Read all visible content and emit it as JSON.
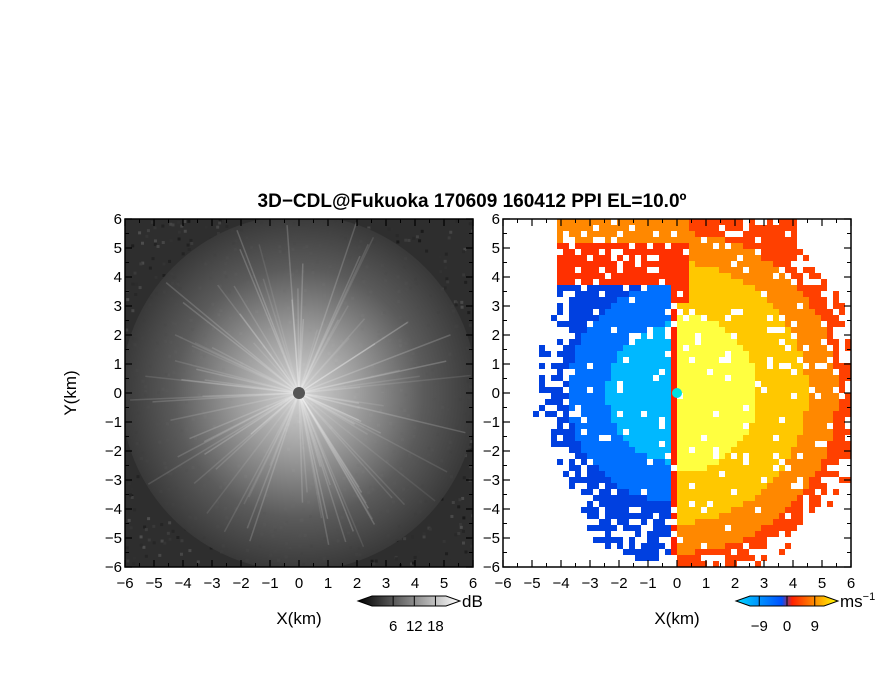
{
  "title": "3D−CDL@Fukuoka 170609 160412 PPI EL=10.0º",
  "chart_data": [
    {
      "type": "heatmap",
      "panel": "reflectivity",
      "xlabel": "X(km)",
      "ylabel": "Y(km)",
      "xlim": [
        -6,
        6
      ],
      "ylim": [
        -6,
        6
      ],
      "xticks": [
        "−6",
        "−5",
        "−4",
        "−3",
        "−2",
        "−1",
        "0",
        "1",
        "2",
        "3",
        "4",
        "5",
        "6"
      ],
      "yticks": [
        "−6",
        "−5",
        "−4",
        "−3",
        "−2",
        "−1",
        "0",
        "1",
        "2",
        "3",
        "4",
        "5",
        "6"
      ],
      "colorbar": {
        "unit": "dB",
        "ticks": [
          "6",
          "12",
          "18"
        ],
        "range": [
          0,
          21
        ],
        "colors": [
          "#000000",
          "#ffffff"
        ]
      },
      "grid": false
    },
    {
      "type": "heatmap",
      "panel": "doppler-velocity",
      "xlabel": "X(km)",
      "ylabel": "",
      "xlim": [
        -6,
        6
      ],
      "ylim": [
        -6,
        6
      ],
      "xticks": [
        "−6",
        "−5",
        "−4",
        "−3",
        "−2",
        "−1",
        "0",
        "1",
        "2",
        "3",
        "4",
        "5",
        "6"
      ],
      "yticks": [
        "−6",
        "−5",
        "−4",
        "−3",
        "−2",
        "−1",
        "0",
        "1",
        "2",
        "3",
        "4",
        "5",
        "6"
      ],
      "colorbar": {
        "unit": "ms",
        "unit_exponent": "−1",
        "ticks": [
          "−9",
          "0",
          "9"
        ],
        "range": [
          -12,
          12
        ],
        "colors": [
          "#00d8ff",
          "#0050ff",
          "#ff2000",
          "#ffff00"
        ]
      },
      "grid": false
    }
  ]
}
